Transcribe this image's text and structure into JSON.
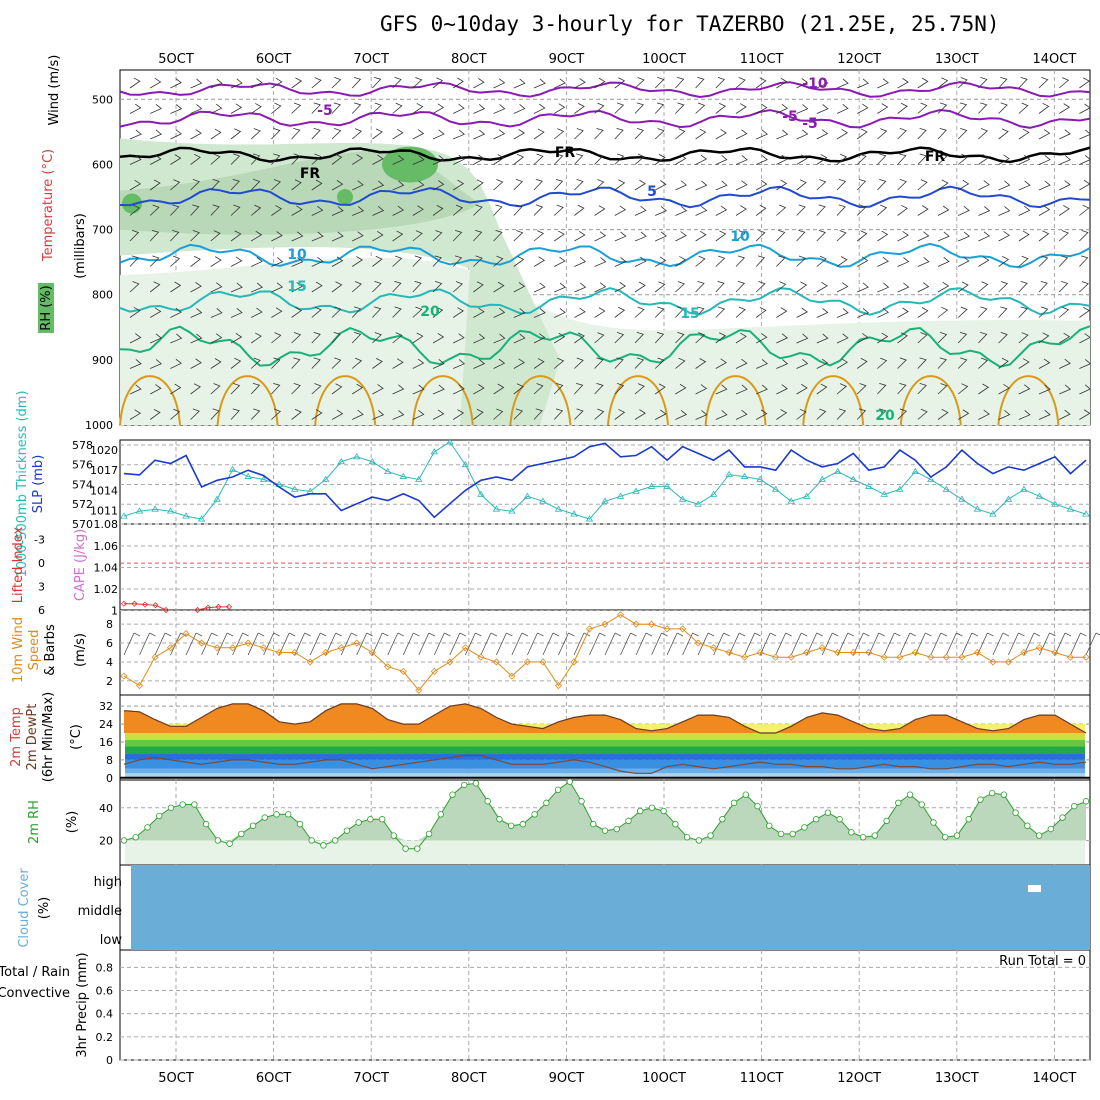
{
  "title": "GFS 0~10day 3-hourly for TAZERBO (21.25E, 25.75N)",
  "colors": {
    "purple": "#8a1ab3",
    "blue": "#1f4ad1",
    "lightblue": "#1aa0d8",
    "teal": "#26b8b8",
    "green": "#19b07a",
    "orange": "#d99a1a",
    "slp": "#1a3acc",
    "thick": "#2cb8b8",
    "wind": "#e08a1a",
    "rh": "#2ea02e",
    "cloud": "#6aaed8",
    "cape": "#d070d0",
    "lifted": "#e03030"
  },
  "chart_data": {
    "type": "meteogram",
    "x_ticks": [
      "5OCT",
      "6OCT",
      "7OCT",
      "8OCT",
      "9OCT",
      "10OCT",
      "11OCT",
      "12OCT",
      "13OCT",
      "14OCT"
    ],
    "panels": {
      "upper_air": {
        "ylabel": "(millibars)",
        "side_labels": [
          "Wind (m/s)",
          "Temperature (°C)",
          "RH (%)"
        ],
        "yticks": [
          "500",
          "600",
          "700",
          "800",
          "900",
          "1000"
        ],
        "contour_labels": [
          "-10",
          "-5",
          "-5",
          "FR",
          "FR",
          "FR",
          "-5",
          "5",
          "10",
          "10",
          "15",
          "15",
          "20",
          "20"
        ]
      },
      "slp_thickness": {
        "ylabel": "SLP (mb)",
        "ylabel2": "1000-500mb Thickness (dm)",
        "yticks_thickness": [
          "578",
          "576",
          "574",
          "572",
          "570"
        ],
        "yticks_slp": [
          "1020",
          "1017",
          "1014",
          "1011",
          "1.08"
        ],
        "slp": [
          1016.5,
          1016.3,
          1018.5,
          1018,
          1019.2,
          1014.5,
          1015.5,
          1016,
          1017,
          1016.2,
          1014.5,
          1013,
          1013.5,
          1013.5,
          1011,
          1012,
          1013,
          1012.5,
          1013.5,
          1012.5,
          1010,
          1012,
          1014,
          1015.5,
          1016,
          1015.5,
          1017.5,
          1018,
          1018.5,
          1019,
          1020.5,
          1021,
          1019,
          1019.2,
          1020.5,
          1018.5,
          1020.5,
          1019.5,
          1018.5,
          1020,
          1017.5,
          1017.5,
          1017,
          1020,
          1018.5,
          1017.5,
          1018,
          1019.5,
          1017,
          1017.5,
          1020,
          1018.5,
          1016,
          1017.5,
          1020,
          1018,
          1016.5,
          1017.5,
          1017,
          1018,
          1019,
          1016.5,
          1018.5
        ],
        "thickness": [
          570.8,
          571.3,
          571.5,
          571.3,
          570.8,
          570.5,
          572.5,
          575.5,
          574.8,
          574.5,
          574,
          573.5,
          573.3,
          574.5,
          576.3,
          576.8,
          576.3,
          575.3,
          574.8,
          574.5,
          577.3,
          578.3,
          576,
          573,
          571.5,
          571.3,
          572.8,
          572.3,
          571.5,
          571,
          570.5,
          572.3,
          572.8,
          573.3,
          573.8,
          573.8,
          572.5,
          572,
          573,
          575,
          574.8,
          574.5,
          573.5,
          572.3,
          572.8,
          574.5,
          575.3,
          574.5,
          573.8,
          573,
          573.5,
          575.3,
          574.5,
          573.5,
          572.5,
          571.5,
          571,
          572.5,
          573.5,
          572.8,
          572,
          571.5,
          571
        ]
      },
      "lifted_cape": {
        "ylabel": "Lifted Index",
        "ylabel2": "CAPE (J/kg)",
        "yticks_li": [
          "-3",
          "0",
          "3",
          "6"
        ],
        "yticks_cape": [
          "1.06",
          "1.04",
          "1.02",
          "1"
        ],
        "lifted_index": [
          5.2,
          5.2,
          5.3,
          5.4,
          6,
          null,
          null,
          6,
          5.7,
          5.6,
          5.6
        ]
      },
      "wind10m": {
        "ylabel": "10m Wind Speed & Barbs (m/s)",
        "yticks": [
          "8",
          "6",
          "4",
          "2"
        ],
        "speed": [
          2.5,
          1.5,
          4.5,
          5.5,
          7,
          6,
          5.5,
          5.5,
          6,
          5.5,
          5,
          5,
          4,
          5,
          5.5,
          6,
          5,
          3.5,
          3,
          1,
          3,
          4,
          5.5,
          4.5,
          4,
          2.5,
          4,
          4,
          1.5,
          4,
          7.5,
          8,
          9,
          8,
          8,
          7.5,
          7.5,
          6,
          5.5,
          5,
          4.5,
          5,
          4.5,
          4.5,
          5,
          5.5,
          5,
          5,
          5,
          4.5,
          4.5,
          5,
          4.5,
          4.5,
          4.5,
          5,
          4,
          4,
          5,
          5.5,
          5,
          4.5,
          4.5
        ]
      },
      "temp2m": {
        "ylabel": "2m Temp 2m DewPt (6hr Min/Max) (°C)",
        "yticks": [
          "32",
          "24",
          "16",
          "8",
          "0"
        ],
        "temperature": [
          30,
          29.5,
          26,
          23,
          23,
          27,
          31,
          33,
          33,
          30,
          25,
          24,
          25,
          30,
          33,
          33,
          31,
          26,
          24,
          24,
          28,
          32,
          33,
          31,
          27,
          24,
          23,
          22,
          25,
          27,
          28,
          28,
          26,
          22,
          21,
          22,
          25,
          28,
          28,
          27,
          23,
          20,
          20,
          23,
          27,
          29,
          28,
          25,
          22,
          21,
          22,
          26,
          28,
          28,
          25,
          22,
          21,
          22,
          26,
          28,
          28,
          24,
          20
        ],
        "dewpoint": [
          6,
          8,
          9,
          8,
          7,
          6,
          7,
          8,
          8,
          7,
          6,
          6,
          7,
          8,
          8,
          6,
          4,
          5,
          6,
          7,
          8,
          9,
          10,
          10,
          8,
          6,
          6,
          6,
          7,
          8,
          7,
          5,
          3,
          2,
          2,
          5,
          6,
          5,
          4,
          5,
          6,
          7,
          6,
          6,
          5,
          5,
          4,
          4,
          5,
          6,
          5,
          5,
          4,
          4,
          5,
          6,
          6,
          5,
          6,
          7,
          6,
          6,
          7
        ]
      },
      "rh2m": {
        "ylabel": "2m RH (%)",
        "yticks": [
          "40",
          "20"
        ],
        "rh": [
          20,
          22,
          28,
          35,
          40,
          42,
          42,
          30,
          20,
          18,
          24,
          29,
          34,
          36,
          36,
          30,
          20,
          17,
          20,
          26,
          31,
          33,
          33,
          23,
          15,
          15,
          24,
          36,
          48,
          54,
          55,
          44,
          33,
          29,
          30,
          36,
          43,
          51,
          56,
          44,
          30,
          26,
          27,
          32,
          38,
          40,
          38,
          30,
          22,
          20,
          23,
          33,
          43,
          48,
          41,
          29,
          24,
          24,
          28,
          33,
          37,
          33,
          25,
          22,
          23,
          32,
          43,
          48,
          42,
          31,
          22,
          23,
          33,
          45,
          49,
          48,
          37,
          29,
          23,
          27,
          34,
          41,
          44
        ]
      },
      "cloud_cover": {
        "ylabel": "Cloud Cover (%)",
        "levels": [
          "high",
          "middle",
          "low"
        ]
      },
      "precip": {
        "ylabel": "3hr Precip (mm)",
        "side_labels": [
          "Total / Rain",
          "Convective"
        ],
        "yticks": [
          "0.8",
          "0.6",
          "0.4",
          "0.2",
          "0"
        ],
        "run_total": "Run Total = 0",
        "values": []
      }
    }
  }
}
